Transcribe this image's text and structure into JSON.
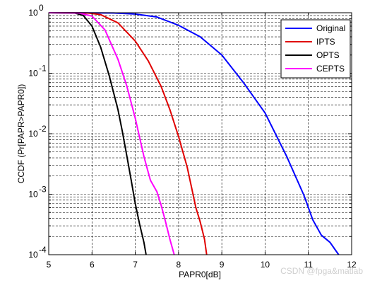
{
  "chart_data": {
    "type": "line",
    "title": "",
    "xlabel": "PAPR0[dB]",
    "ylabel": "CCDF (Pr[PAPR>PAPR0])",
    "xlim": [
      5,
      12
    ],
    "ylim": [
      0.0001,
      1
    ],
    "yscale": "log",
    "grid": true,
    "legend_position": "top-right",
    "xticks": [
      "5",
      "6",
      "7",
      "8",
      "9",
      "10",
      "11",
      "12"
    ],
    "yticks": [
      {
        "value": 0.0001,
        "base": "10",
        "exp": "-4"
      },
      {
        "value": 0.001,
        "base": "10",
        "exp": "-3"
      },
      {
        "value": 0.01,
        "base": "10",
        "exp": "-2"
      },
      {
        "value": 0.1,
        "base": "10",
        "exp": "-1"
      },
      {
        "value": 1,
        "base": "10",
        "exp": "0"
      }
    ],
    "series": [
      {
        "name": "Original",
        "color": "#0000ff",
        "x": [
          5.0,
          6.5,
          7.0,
          7.5,
          8.0,
          8.5,
          9.0,
          9.5,
          10.0,
          10.5,
          10.9,
          11.1,
          11.3,
          11.5,
          11.7
        ],
        "y": [
          1.0,
          0.99,
          0.95,
          0.85,
          0.62,
          0.4,
          0.2,
          0.07,
          0.022,
          0.0042,
          0.00095,
          0.00038,
          0.00021,
          0.00016,
          0.0001
        ]
      },
      {
        "name": "IPTS",
        "color": "#e00000",
        "x": [
          5.0,
          5.9,
          6.2,
          6.6,
          7.0,
          7.3,
          7.6,
          7.8,
          8.0,
          8.2,
          8.3,
          8.4,
          8.5,
          8.6,
          8.65
        ],
        "y": [
          1.0,
          0.99,
          0.93,
          0.68,
          0.34,
          0.16,
          0.06,
          0.025,
          0.009,
          0.0028,
          0.0013,
          0.0006,
          0.00035,
          0.00018,
          0.0001
        ]
      },
      {
        "name": "OPTS",
        "color": "#000000",
        "x": [
          5.0,
          5.6,
          5.8,
          6.0,
          6.2,
          6.4,
          6.6,
          6.7,
          6.8,
          6.9,
          7.0,
          7.1,
          7.2,
          7.25
        ],
        "y": [
          1.0,
          0.99,
          0.9,
          0.6,
          0.27,
          0.09,
          0.025,
          0.011,
          0.0045,
          0.0018,
          0.0007,
          0.00032,
          0.00016,
          0.0001
        ]
      },
      {
        "name": "CEPTS",
        "color": "#ff00ff",
        "x": [
          5.0,
          5.7,
          6.0,
          6.3,
          6.6,
          6.8,
          7.0,
          7.2,
          7.35,
          7.5,
          7.6,
          7.7,
          7.8,
          7.9
        ],
        "y": [
          1.0,
          0.99,
          0.88,
          0.52,
          0.17,
          0.063,
          0.018,
          0.0042,
          0.0017,
          0.0011,
          0.00065,
          0.00035,
          0.00018,
          0.0001
        ]
      }
    ]
  },
  "watermark": "CSDN @fpga&matlab"
}
